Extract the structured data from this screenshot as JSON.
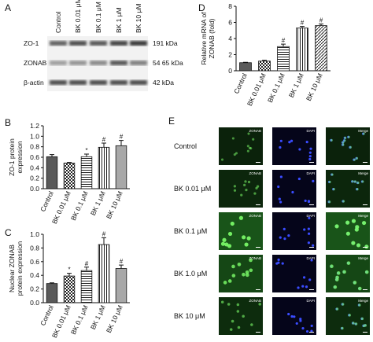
{
  "panel_labels": [
    "A",
    "B",
    "C",
    "D",
    "E"
  ],
  "blot": {
    "lanes": [
      "Control",
      "BK 0.01 μM",
      "BK 0.1 μM",
      "BK 1 μM",
      "BK 10 μM"
    ],
    "rows": [
      {
        "label": "ZO-1",
        "size": "191 kDa"
      },
      {
        "label": "ZONAB",
        "size": "54 65 kDa"
      },
      {
        "label": "β-actin",
        "size": "42 kDa"
      }
    ]
  },
  "chart_data": [
    {
      "type": "bar",
      "ylabel": [
        "ZO-1 protein",
        "expression"
      ],
      "categories": [
        "Control",
        "BK 0.01 μM",
        "BK 0.1 μM",
        "BK 1 μM",
        "BK 10 μM"
      ],
      "values": [
        0.61,
        0.49,
        0.61,
        0.79,
        0.82
      ],
      "errors": [
        0.04,
        0.01,
        0.05,
        0.08,
        0.1
      ],
      "value_annotations": [
        null,
        null,
        "*",
        "#",
        "#"
      ],
      "fills": [
        "#5a5a5a",
        "checker",
        "hlines",
        "vlines",
        "#a8a8a8"
      ],
      "ylim": [
        0,
        1.2
      ],
      "yticks": [
        {
          "value": 0,
          "label": "0.0"
        },
        0.2,
        0.4,
        0.6,
        0.8,
        {
          "value": 1,
          "label": "1.0"
        },
        1.2
      ]
    },
    {
      "type": "bar",
      "ylabel": [
        "Nuclear ZONAB",
        "protein expression"
      ],
      "categories": [
        "Control",
        "BK 0.01 μM",
        "BK 0.1 μM",
        "BK 1 μM",
        "BK 10 μM"
      ],
      "values": [
        0.28,
        0.39,
        0.47,
        0.85,
        0.5
      ],
      "errors": [
        0.01,
        0.04,
        0.05,
        0.1,
        0.05
      ],
      "value_annotations": [
        null,
        "*",
        "#",
        "#",
        "#"
      ],
      "fills": [
        "#5a5a5a",
        "checker",
        "hlines",
        "vlines",
        "#a8a8a8"
      ],
      "ylim": [
        0,
        1
      ],
      "yticks": [
        {
          "value": 0,
          "label": "0.0"
        },
        0.2,
        0.4,
        0.6,
        0.8,
        {
          "value": 1,
          "label": "1.0"
        }
      ]
    },
    {
      "type": "bar",
      "ylabel": [
        "Relative mRNA of",
        "ZONAB (fold)"
      ],
      "categories": [
        "Control",
        "BK 0.01 μM",
        "BK 0.1 μM",
        "BK 1 μM",
        "BK 10 μM"
      ],
      "values": [
        1,
        1.2,
        3,
        5.3,
        5.6
      ],
      "errors": [
        0.05,
        0.1,
        0.3,
        0.2,
        0.2
      ],
      "value_annotations": [
        null,
        null,
        "#",
        "#",
        "#"
      ],
      "fills": [
        "#5a5a5a",
        "checker",
        "hlines",
        "vlines",
        "diag"
      ],
      "ylim": [
        0,
        8
      ],
      "yticks": [
        0,
        2,
        4,
        6,
        8
      ]
    }
  ],
  "microscopy": {
    "columns": [
      "ZONAB",
      "DAPI",
      "Merge"
    ],
    "rows": [
      "Control",
      "BK 0.01 μM",
      "BK 0.1 μM",
      "BK 1.0 μM",
      "BK 10  μM"
    ]
  }
}
